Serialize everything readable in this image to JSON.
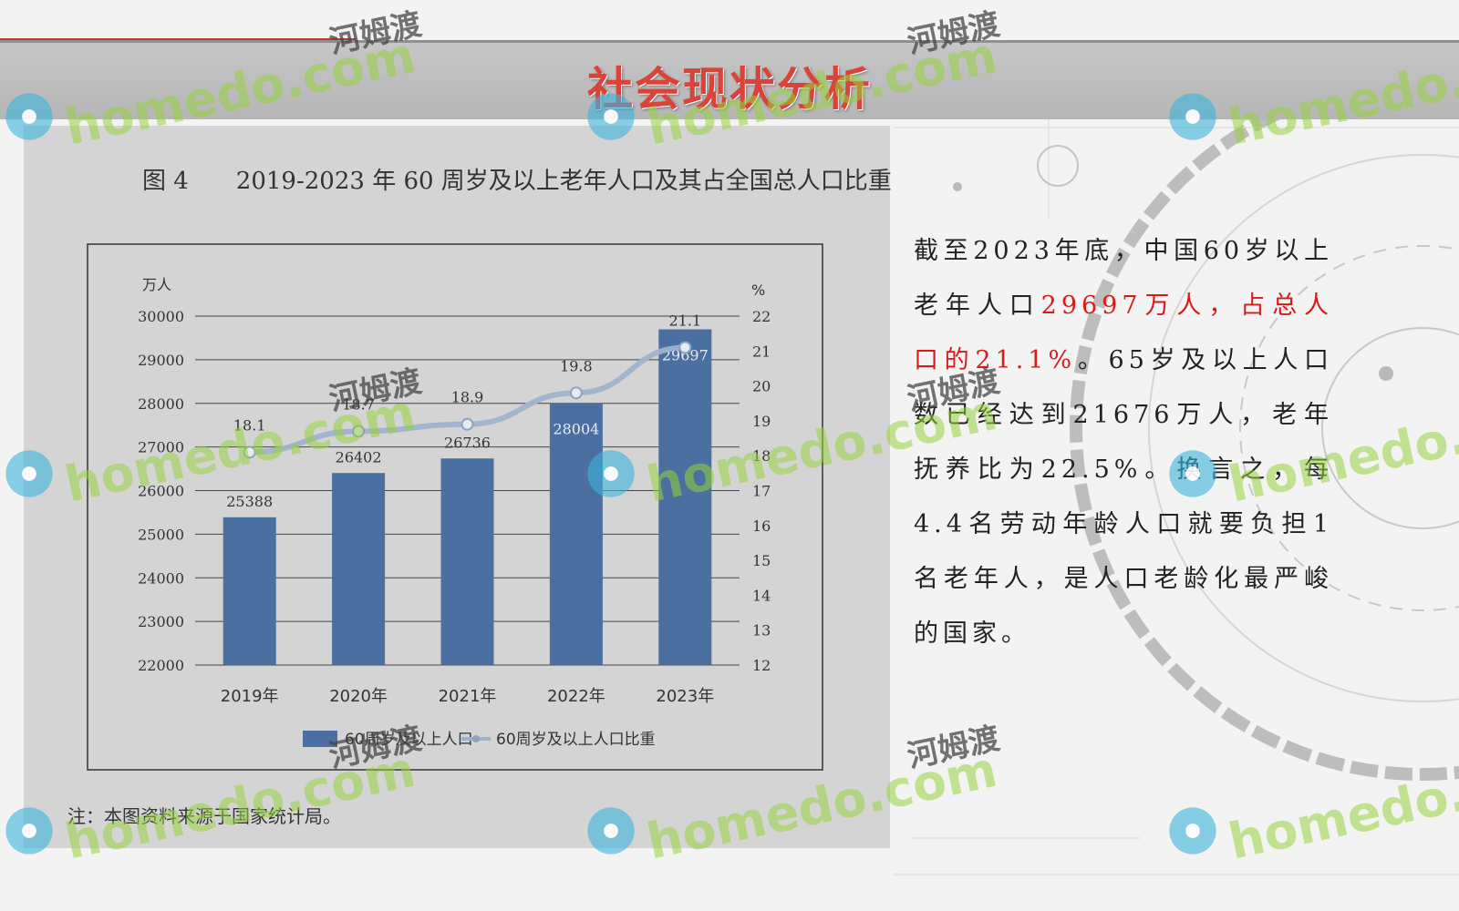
{
  "page": {
    "title": "社会现状分析"
  },
  "figure": {
    "title": "图 4　　2019-2023 年 60 周岁及以上老年人口及其占全国总人口比重",
    "note": "注：本图资料来源于国家统计局。"
  },
  "chart_data": {
    "type": "bar",
    "categories": [
      "2019年",
      "2020年",
      "2021年",
      "2022年",
      "2023年"
    ],
    "series": [
      {
        "name": "60周岁及以上人口",
        "type": "bar",
        "axis": "left",
        "values": [
          25388,
          26402,
          26736,
          28004,
          29697
        ]
      },
      {
        "name": "60周岁及以上人口比重",
        "type": "line",
        "axis": "right",
        "values": [
          18.1,
          18.7,
          18.9,
          19.8,
          21.1
        ]
      }
    ],
    "ylabel": "万人",
    "ylim": [
      22000,
      30000
    ],
    "yticks": [
      22000,
      23000,
      24000,
      25000,
      26000,
      27000,
      28000,
      29000,
      30000
    ],
    "y2label": "%",
    "y2lim": [
      12,
      22
    ],
    "y2ticks": [
      12,
      13,
      14,
      15,
      16,
      17,
      18,
      19,
      20,
      21,
      22
    ],
    "legend_position": "bottom",
    "grid": true,
    "colors": {
      "bar": "#4a6fa0",
      "line": "#9fb2cd",
      "grid": "#444444"
    }
  },
  "body": {
    "seg1": "截至2023年底，中国60岁以上老年人口",
    "seg2": "29697万人，占总人口的21.1%",
    "seg3": "。65岁及以上人口数已经达到21676万人，老年抚养比为22.5%。换言之，每4.4名劳动年龄人口就要负担1名老年人，是人口老龄化最严峻的国家。"
  },
  "watermark": {
    "site": "homedo.com",
    "cn": "河姆渡"
  },
  "colors": {
    "title": "#d9443a",
    "highlight": "#d61b1b",
    "title_bar": "#bcbcbc"
  }
}
